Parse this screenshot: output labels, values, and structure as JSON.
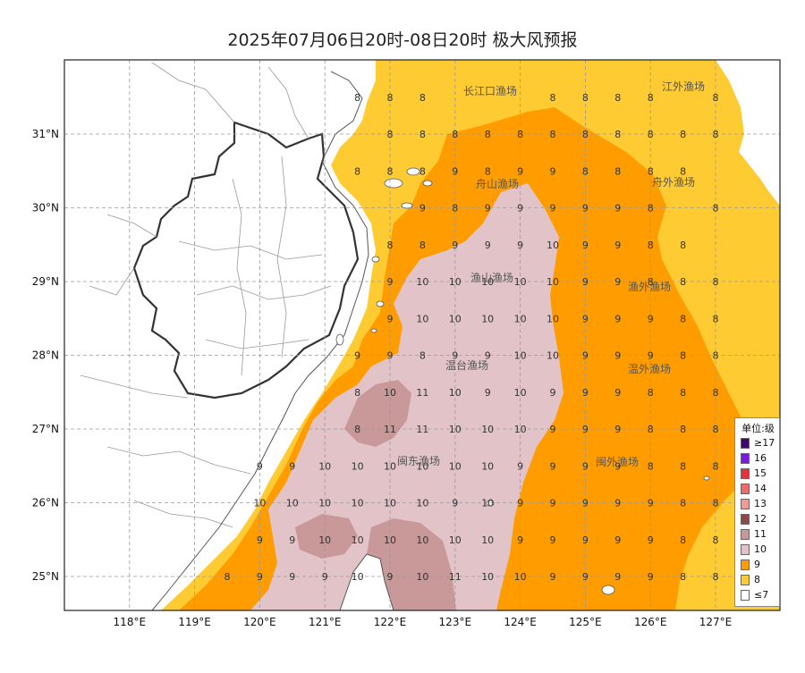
{
  "title": "2025年07月06日20时-08日20时 极大风预报",
  "x_axis": {
    "ticks": [
      "118°E",
      "119°E",
      "120°E",
      "121°E",
      "122°E",
      "123°E",
      "124°E",
      "125°E",
      "126°E",
      "127°E"
    ]
  },
  "y_axis": {
    "ticks": [
      "31°N",
      "30°N",
      "29°N",
      "28°N",
      "27°N",
      "26°N",
      "25°N"
    ]
  },
  "legend": {
    "title": "单位:级",
    "items": [
      {
        "label": "≥17",
        "color": "#3d0a6b"
      },
      {
        "label": "16",
        "color": "#7a1ae0"
      },
      {
        "label": "15",
        "color": "#e8323a"
      },
      {
        "label": "14",
        "color": "#f06a6a"
      },
      {
        "label": "13",
        "color": "#f29a9a"
      },
      {
        "label": "12",
        "color": "#8c4a4a"
      },
      {
        "label": "11",
        "color": "#c99898"
      },
      {
        "label": "10",
        "color": "#e2c4c8"
      },
      {
        "label": "9",
        "color": "#ff9d00"
      },
      {
        "label": "8",
        "color": "#ffcb33"
      },
      {
        "label": "≤7",
        "color": "#ffffff"
      }
    ]
  },
  "fishing_zones": [
    "长江口渔场",
    "江外渔场",
    "舟山渔场",
    "舟外渔场",
    "渔山渔场",
    "渔外渔场",
    "温台渔场",
    "温外渔场",
    "闽东渔场",
    "闽外渔场"
  ],
  "grid_values": {
    "lons": [
      119.5,
      120.0,
      120.5,
      121.0,
      121.5,
      122.0,
      122.5,
      123.0,
      123.5,
      124.0,
      124.5,
      125.0,
      125.5,
      126.0,
      126.5,
      127.0
    ],
    "lats": [
      31.5,
      31.0,
      30.5,
      30.0,
      29.5,
      29.0,
      28.5,
      28.0,
      27.5,
      27.0,
      26.5,
      26.0,
      25.5,
      25.0
    ],
    "rows": [
      [
        "",
        "",
        "",
        "",
        "8",
        "8",
        "8",
        "",
        "",
        "",
        "8",
        "8",
        "8",
        "8",
        "",
        "8"
      ],
      [
        "",
        "",
        "",
        "",
        "",
        "8",
        "8",
        "8",
        "8",
        "8",
        "8",
        "8",
        "8",
        "8",
        "8",
        "8"
      ],
      [
        "",
        "",
        "",
        "",
        "8",
        "8",
        "8",
        "9",
        "8",
        "9",
        "9",
        "8",
        "8",
        "8",
        "8",
        ""
      ],
      [
        "",
        "",
        "",
        "",
        "",
        "",
        "9",
        "8",
        "9",
        "9",
        "9",
        "9",
        "9",
        "8",
        "",
        "8"
      ],
      [
        "",
        "",
        "",
        "",
        "",
        "8",
        "8",
        "9",
        "9",
        "9",
        "10",
        "9",
        "9",
        "8",
        "8",
        ""
      ],
      [
        "",
        "",
        "",
        "",
        "",
        "9",
        "10",
        "10",
        "10",
        "10",
        "10",
        "9",
        "9",
        "8",
        "8",
        "8"
      ],
      [
        "",
        "",
        "",
        "",
        "",
        "9",
        "10",
        "10",
        "10",
        "10",
        "10",
        "9",
        "9",
        "9",
        "8",
        "8"
      ],
      [
        "",
        "",
        "",
        "",
        "9",
        "9",
        "8",
        "9",
        "9",
        "10",
        "10",
        "9",
        "9",
        "9",
        "8",
        "8"
      ],
      [
        "",
        "",
        "",
        "",
        "8",
        "10",
        "11",
        "10",
        "9",
        "10",
        "9",
        "9",
        "9",
        "8",
        "8",
        "8"
      ],
      [
        "",
        "",
        "",
        "",
        "8",
        "11",
        "11",
        "10",
        "10",
        "10",
        "9",
        "9",
        "9",
        "8",
        "8",
        "8"
      ],
      [
        "",
        "9",
        "9",
        "10",
        "10",
        "10",
        "10",
        "10",
        "10",
        "9",
        "9",
        "9",
        "9",
        "8",
        "8",
        "8"
      ],
      [
        "",
        "10",
        "10",
        "10",
        "10",
        "10",
        "10",
        "9",
        "10",
        "9",
        "9",
        "9",
        "9",
        "9",
        "8",
        "8"
      ],
      [
        "",
        "9",
        "9",
        "10",
        "10",
        "10",
        "10",
        "10",
        "10",
        "9",
        "9",
        "9",
        "9",
        "9",
        "8",
        "8"
      ],
      [
        "8",
        "9",
        "9",
        "9",
        "10",
        "9",
        "10",
        "11",
        "10",
        "10",
        "9",
        "9",
        "9",
        "9",
        "8",
        "8"
      ]
    ]
  }
}
